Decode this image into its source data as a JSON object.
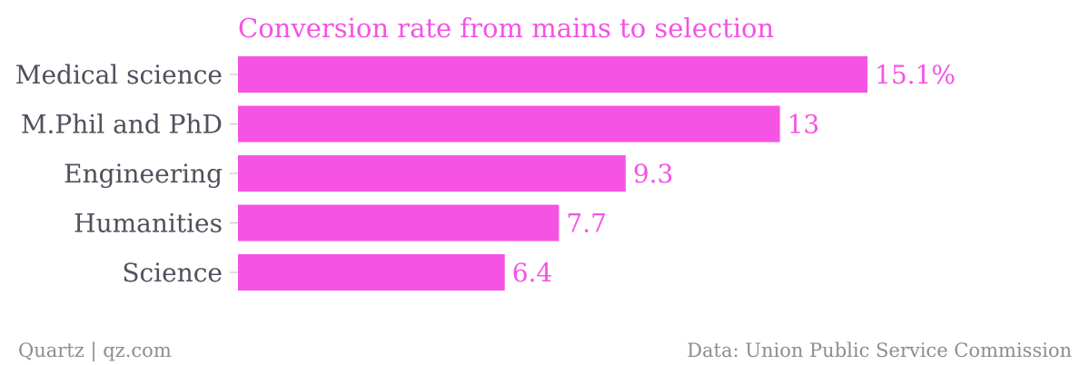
{
  "chart_data": {
    "type": "bar",
    "orientation": "horizontal",
    "title": "Conversion rate from mains to selection",
    "categories": [
      "Medical science",
      "M.Phil and PhD",
      "Engineering",
      "Humanities",
      "Science"
    ],
    "values": [
      15.1,
      13,
      9.3,
      7.7,
      6.4
    ],
    "value_labels": [
      "15.1%",
      "13",
      "9.3",
      "7.7",
      "6.4"
    ],
    "unit": "%",
    "xlim": [
      0,
      15.1
    ],
    "grid": false,
    "legend": "none"
  },
  "footer": {
    "source_left": "Quartz | qz.com",
    "source_right": "Data: Union Public Service Commission"
  },
  "colors": {
    "bar": "#f652e4",
    "title": "#f652e4",
    "value_label": "#f652e4",
    "category_label": "#51515d",
    "footer": "#8c8c96",
    "axis_tick": "#bfbfc6"
  }
}
